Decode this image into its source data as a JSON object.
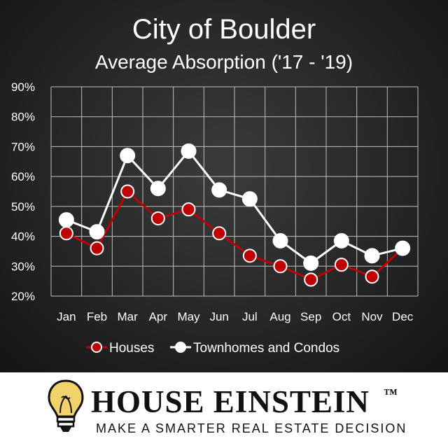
{
  "chart_data": {
    "type": "line",
    "title": "City of Boulder",
    "subtitle": "Average Absorption ('17 - '19)",
    "categories": [
      "Jan",
      "Feb",
      "Mar",
      "Apr",
      "May",
      "Jun",
      "Jul",
      "Aug",
      "Sep",
      "Oct",
      "Nov",
      "Dec"
    ],
    "yticks": [
      "20%",
      "30%",
      "40%",
      "50%",
      "60%",
      "70%",
      "80%",
      "90%"
    ],
    "ylim": [
      20,
      90
    ],
    "grid": true,
    "legend_position": "bottom",
    "series": [
      {
        "name": "Houses",
        "values": [
          41,
          36,
          55,
          46,
          49,
          41,
          33.5,
          30,
          25.5,
          30.5,
          26.5,
          36
        ],
        "color": "#c00000"
      },
      {
        "name": "Townhomes and Condos",
        "values": [
          45.5,
          41.5,
          67,
          56,
          68.5,
          55.5,
          52.5,
          38.5,
          31,
          38.5,
          33.5,
          36
        ],
        "color": "#ffffff"
      }
    ]
  },
  "colors": {
    "background": "#262626",
    "gridline": "#bfbfbf",
    "text": "#ffffff",
    "houses": "#c00000",
    "townhomes": "#ffffff"
  },
  "branding": {
    "name": "HOUSE EINSTEIN",
    "trademark": "™",
    "tagline": "MAKE A SMARTER REAL ESTATE DECISION",
    "logo_icon": "lightbulb-icon"
  }
}
